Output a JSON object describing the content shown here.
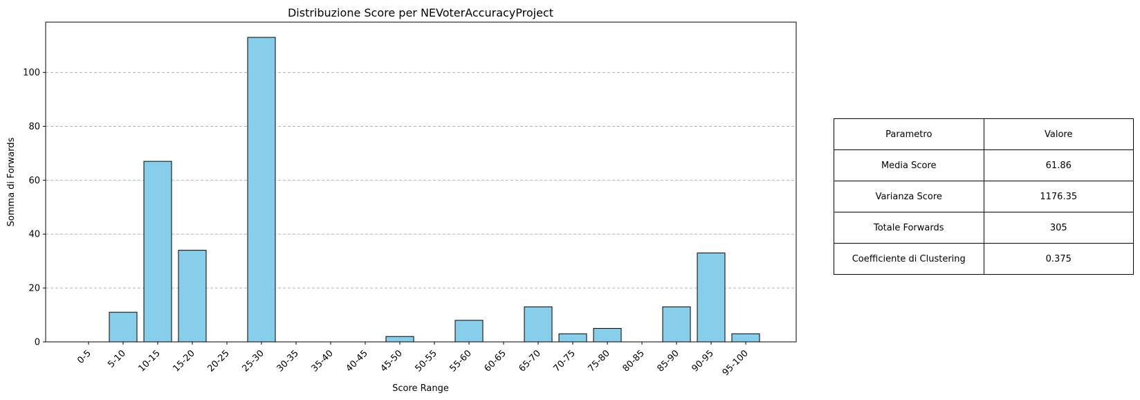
{
  "chart_data": {
    "type": "bar",
    "title": "Distribuzione Score per NEVoterAccuracyProject",
    "xlabel": "Score Range",
    "ylabel": "Somma di Forwards",
    "categories": [
      "0-5",
      "5-10",
      "10-15",
      "15-20",
      "20-25",
      "25-30",
      "30-35",
      "35-40",
      "40-45",
      "45-50",
      "50-55",
      "55-60",
      "60-65",
      "65-70",
      "70-75",
      "75-80",
      "80-85",
      "85-90",
      "90-95",
      "95-100"
    ],
    "values": [
      0,
      11,
      67,
      34,
      0,
      113,
      0,
      0,
      0,
      2,
      0,
      8,
      0,
      13,
      3,
      5,
      0,
      13,
      33,
      3
    ],
    "ylim": [
      0,
      118.65
    ],
    "yticks": [
      0,
      20,
      40,
      60,
      80,
      100
    ],
    "grid": "y-dashed",
    "bar_color": "#87ceeb",
    "bar_edge_color": "#000000",
    "grid_color": "#b0b0b0"
  },
  "stats_table": {
    "header": {
      "param": "Parametro",
      "value": "Valore"
    },
    "rows": [
      {
        "param": "Media Score",
        "value": "61.86"
      },
      {
        "param": "Varianza Score",
        "value": "1176.35"
      },
      {
        "param": "Totale Forwards",
        "value": "305"
      },
      {
        "param": "Coefficiente di Clustering",
        "value": "0.375"
      }
    ]
  }
}
